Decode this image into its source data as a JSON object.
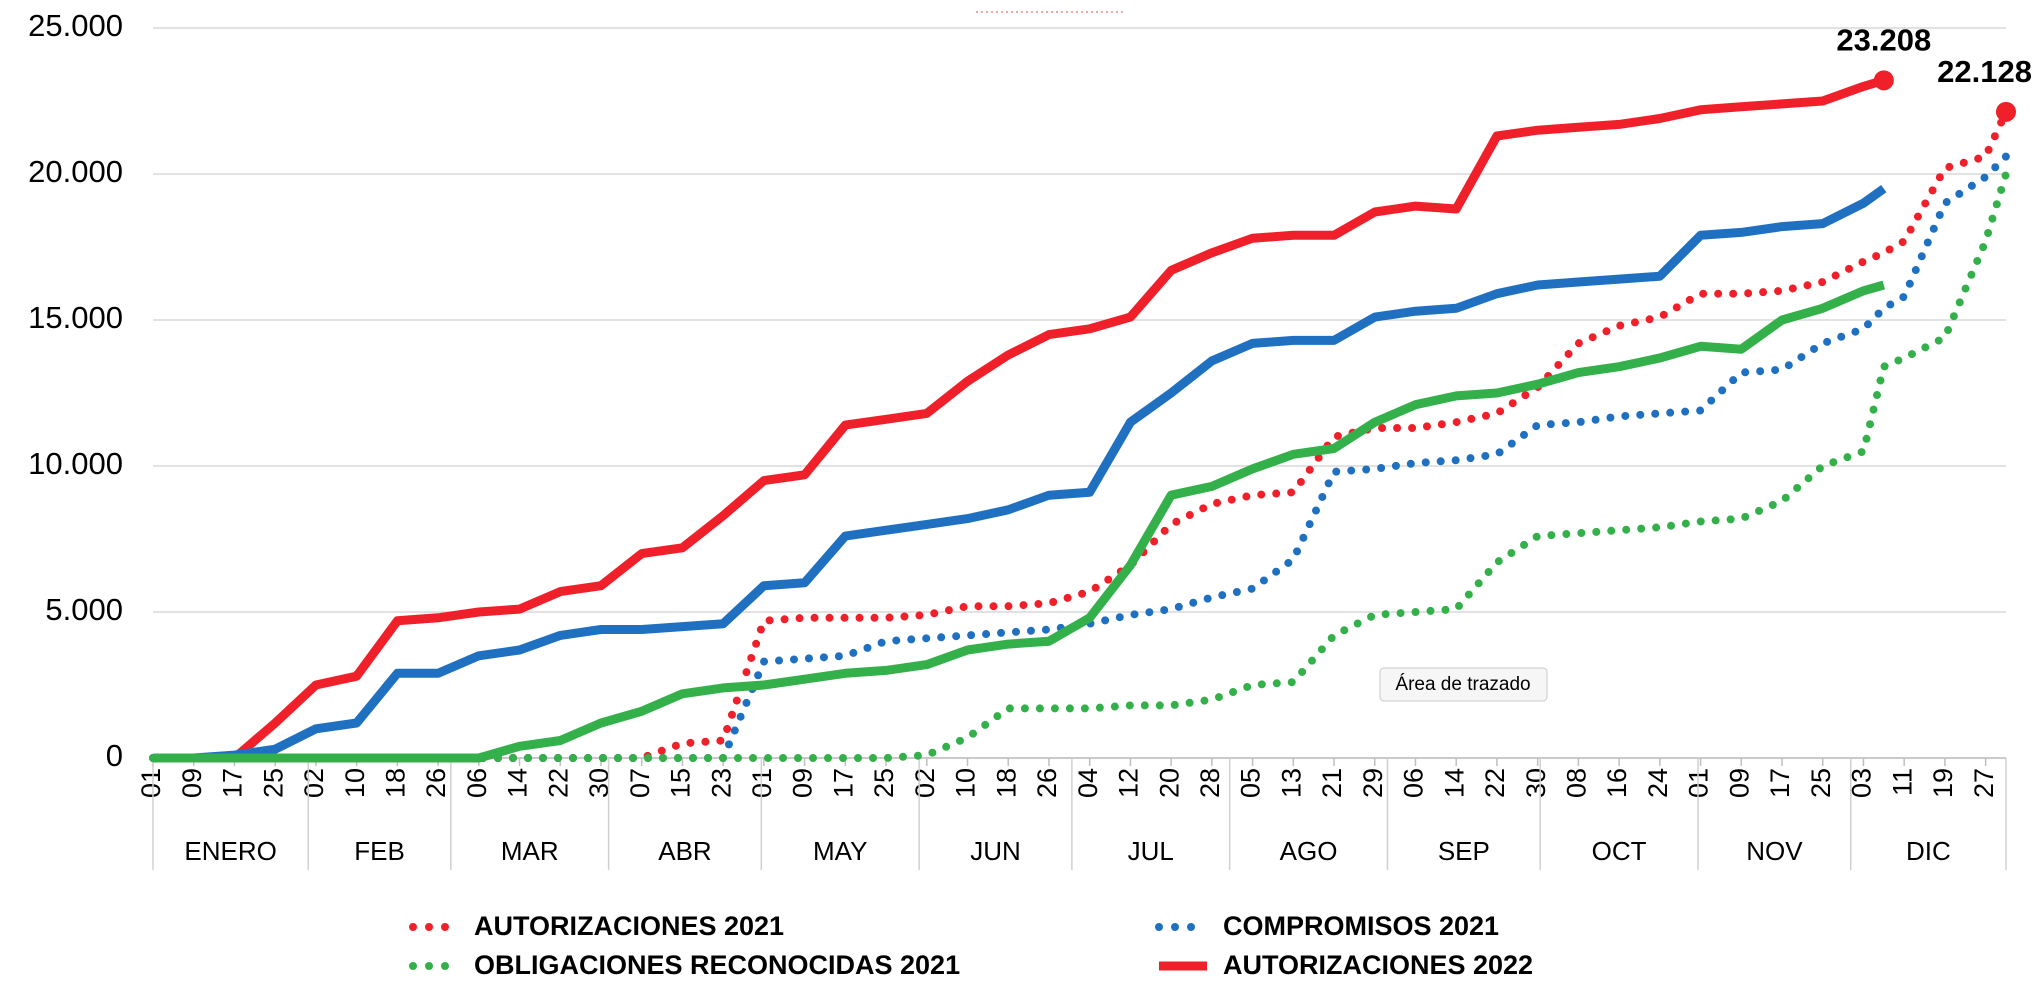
{
  "chart_data": {
    "type": "line",
    "x": [
      1,
      9,
      17,
      25,
      33,
      41,
      49,
      57,
      65,
      73,
      81,
      89,
      97,
      105,
      113,
      121,
      129,
      137,
      145,
      153,
      161,
      169,
      177,
      185,
      193,
      201,
      209,
      217,
      225,
      233,
      241,
      249,
      257,
      265,
      273,
      281,
      289,
      297,
      305,
      313,
      321,
      329,
      337,
      341,
      345,
      353,
      361,
      365
    ],
    "xlim": [
      1,
      365
    ],
    "xticks": [
      {
        "value": 1,
        "label": "01"
      },
      {
        "value": 9,
        "label": "09"
      },
      {
        "value": 17,
        "label": "17"
      },
      25,
      {
        "value": 33,
        "label": "02"
      },
      {
        "value": 41,
        "label": "10"
      },
      {
        "value": 49,
        "label": "18"
      },
      {
        "value": 57,
        "label": "26"
      },
      {
        "value": 65,
        "label": "06"
      },
      {
        "value": 73,
        "label": "14"
      },
      {
        "value": 81,
        "label": "22"
      },
      {
        "value": 89,
        "label": "30"
      },
      {
        "value": 97,
        "label": "07"
      },
      {
        "value": 105,
        "label": "15"
      },
      {
        "value": 113,
        "label": "23"
      },
      {
        "value": 121,
        "label": "01"
      },
      {
        "value": 129,
        "label": "09"
      },
      {
        "value": 137,
        "label": "17"
      },
      {
        "value": 145,
        "label": "25"
      },
      {
        "value": 153,
        "label": "02"
      },
      {
        "value": 161,
        "label": "10"
      },
      {
        "value": 169,
        "label": "18"
      },
      {
        "value": 177,
        "label": "26"
      },
      {
        "value": 185,
        "label": "04"
      },
      {
        "value": 193,
        "label": "12"
      },
      {
        "value": 201,
        "label": "20"
      },
      {
        "value": 209,
        "label": "28"
      },
      {
        "value": 217,
        "label": "05"
      },
      {
        "value": 225,
        "label": "13"
      },
      {
        "value": 233,
        "label": "21"
      },
      {
        "value": 241,
        "label": "29"
      },
      {
        "value": 249,
        "label": "06"
      },
      {
        "value": 257,
        "label": "14"
      },
      {
        "value": 265,
        "label": "22"
      },
      {
        "value": 273,
        "label": "30"
      },
      {
        "value": 281,
        "label": "08"
      },
      {
        "value": 289,
        "label": "16"
      },
      {
        "value": 297,
        "label": "24"
      },
      {
        "value": 305,
        "label": "01"
      },
      {
        "value": 313,
        "label": "09"
      },
      {
        "value": 321,
        "label": "17"
      },
      {
        "value": 329,
        "label": "25"
      },
      {
        "value": 337,
        "label": "03"
      },
      {
        "value": 345,
        "label": "11"
      },
      {
        "value": 353,
        "label": "19"
      },
      {
        "value": 361,
        "label": "27"
      }
    ],
    "x_groups": [
      {
        "label": "ENERO",
        "start": 1
      },
      {
        "label": "FEB",
        "start": 32
      },
      {
        "label": "MAR",
        "start": 60
      },
      {
        "label": "ABR",
        "start": 91
      },
      {
        "label": "MAY",
        "start": 121
      },
      {
        "label": "JUN",
        "start": 152
      },
      {
        "label": "JUL",
        "start": 182
      },
      {
        "label": "AGO",
        "start": 213
      },
      {
        "label": "SEP",
        "start": 244
      },
      {
        "label": "OCT",
        "start": 274
      },
      {
        "label": "NOV",
        "start": 305
      },
      {
        "label": "DIC",
        "start": 335
      }
    ],
    "ylim": [
      0,
      25000
    ],
    "yticks": [
      0,
      {
        "value": 5000,
        "label": "5.000"
      },
      {
        "value": 10000,
        "label": "10.000"
      },
      {
        "value": 15000,
        "label": "15.000"
      },
      {
        "value": 20000,
        "label": "20.000"
      },
      {
        "value": 25000,
        "label": "25.000"
      }
    ],
    "grid": true,
    "legend": "bottom",
    "series": [
      {
        "name": "AUTORIZACIONES 2021",
        "color": "#f0202a",
        "style": "dotted",
        "values": [
          0,
          0,
          0,
          0,
          0,
          0,
          0,
          0,
          0,
          0,
          0,
          0,
          0,
          500,
          600,
          4700,
          4800,
          4800,
          4800,
          4900,
          5200,
          5200,
          5300,
          5700,
          6600,
          8000,
          8700,
          9000,
          9100,
          11000,
          11300,
          11300,
          11500,
          11800,
          12700,
          14200,
          14800,
          15100,
          15900,
          15900,
          16000,
          16300,
          17000,
          17300,
          17700,
          20200,
          20600,
          22128
        ],
        "value_labels": [
          null,
          null,
          null,
          null,
          null,
          null,
          null,
          null,
          null,
          null,
          null,
          null,
          null,
          null,
          null,
          null,
          null,
          null,
          null,
          null,
          null,
          null,
          null,
          null,
          null,
          null,
          null,
          null,
          null,
          null,
          null,
          null,
          null,
          null,
          null,
          null,
          null,
          null,
          null,
          null,
          null,
          null,
          null,
          null,
          null,
          null,
          null,
          "22.128"
        ]
      },
      {
        "name": "COMPROMISOS 2021",
        "color": "#1f70c1",
        "style": "dotted",
        "values": [
          0,
          0,
          0,
          0,
          0,
          0,
          0,
          0,
          0,
          0,
          0,
          0,
          0,
          0,
          0,
          3300,
          3400,
          3500,
          4000,
          4100,
          4200,
          4300,
          4400,
          4600,
          4900,
          5100,
          5500,
          5800,
          6800,
          9800,
          9900,
          10100,
          10200,
          10400,
          11400,
          11500,
          11700,
          11800,
          11900,
          13200,
          13300,
          14200,
          14700,
          15400,
          15800,
          19000,
          19900,
          20600
        ]
      },
      {
        "name": "OBLIGACIONES RECONOCIDAS 2021",
        "color": "#34b04a",
        "style": "dotted",
        "values": [
          0,
          0,
          0,
          0,
          0,
          0,
          0,
          0,
          0,
          0,
          0,
          0,
          0,
          0,
          0,
          0,
          0,
          0,
          0,
          100,
          700,
          1700,
          1700,
          1700,
          1800,
          1800,
          2000,
          2500,
          2600,
          4200,
          4900,
          5000,
          5100,
          6700,
          7600,
          7700,
          7800,
          7900,
          8100,
          8200,
          8800,
          10000,
          10500,
          13400,
          13700,
          14400,
          17700,
          20000
        ]
      },
      {
        "name": "AUTORIZACIONES 2022",
        "color": "#f0202a",
        "style": "solid",
        "values": [
          0,
          0,
          0,
          1200,
          2500,
          2800,
          4700,
          4800,
          5000,
          5100,
          5700,
          5900,
          7000,
          7200,
          8300,
          9500,
          9700,
          11400,
          11600,
          11800,
          12900,
          13800,
          14500,
          14700,
          15100,
          16700,
          17300,
          17800,
          17900,
          17900,
          18700,
          18900,
          18800,
          21300,
          21500,
          21600,
          21700,
          21900,
          22200,
          22300,
          22400,
          22500,
          23000,
          23208,
          null,
          null,
          null,
          null
        ],
        "value_labels": [
          null,
          null,
          null,
          null,
          null,
          null,
          null,
          null,
          null,
          null,
          null,
          null,
          null,
          null,
          null,
          null,
          null,
          null,
          null,
          null,
          null,
          null,
          null,
          null,
          null,
          null,
          null,
          null,
          null,
          null,
          null,
          null,
          null,
          null,
          null,
          null,
          null,
          null,
          null,
          null,
          null,
          null,
          null,
          "23.208",
          null,
          null,
          null,
          null
        ]
      },
      {
        "color": "#1f70c1",
        "style": "solid",
        "values": [
          0,
          0,
          100,
          300,
          1000,
          1200,
          2900,
          2900,
          3500,
          3700,
          4200,
          4400,
          4400,
          4500,
          4600,
          5900,
          6000,
          7600,
          7800,
          8000,
          8200,
          8500,
          9000,
          9100,
          11500,
          12500,
          13600,
          14200,
          14300,
          14300,
          15100,
          15300,
          15400,
          15900,
          16200,
          16300,
          16400,
          16500,
          17900,
          18000,
          18200,
          18300,
          19000,
          19500,
          null,
          null,
          null,
          null
        ]
      },
      {
        "color": "#34b04a",
        "style": "solid",
        "values": [
          0,
          0,
          0,
          0,
          0,
          0,
          0,
          0,
          0,
          400,
          600,
          1200,
          1600,
          2200,
          2400,
          2500,
          2700,
          2900,
          3000,
          3200,
          3700,
          3900,
          4000,
          4800,
          6600,
          9000,
          9300,
          9900,
          10400,
          10600,
          11500,
          12100,
          12400,
          12500,
          12800,
          13200,
          13400,
          13700,
          14100,
          14000,
          15000,
          15400,
          16000,
          16200,
          null,
          null,
          null,
          null
        ]
      }
    ],
    "tooltip": "Área de trazado"
  }
}
